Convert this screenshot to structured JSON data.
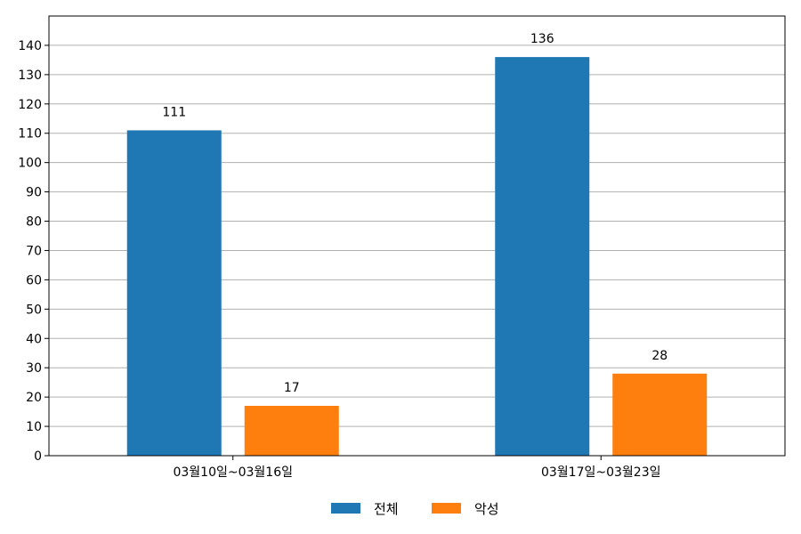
{
  "chart_data": {
    "type": "bar",
    "categories": [
      "03월10일~03월16일",
      "03월17일~03월23일"
    ],
    "series": [
      {
        "name": "전체",
        "values": [
          111,
          136
        ],
        "color": "#1f77b4"
      },
      {
        "name": "악성",
        "values": [
          17,
          28
        ],
        "color": "#ff7f0e"
      }
    ],
    "ylim": [
      0,
      150
    ],
    "yticks": [
      0,
      10,
      20,
      30,
      40,
      50,
      60,
      70,
      80,
      90,
      100,
      110,
      120,
      130,
      140
    ],
    "grid": true,
    "legend_position": "bottom-center",
    "show_data_labels": true
  }
}
